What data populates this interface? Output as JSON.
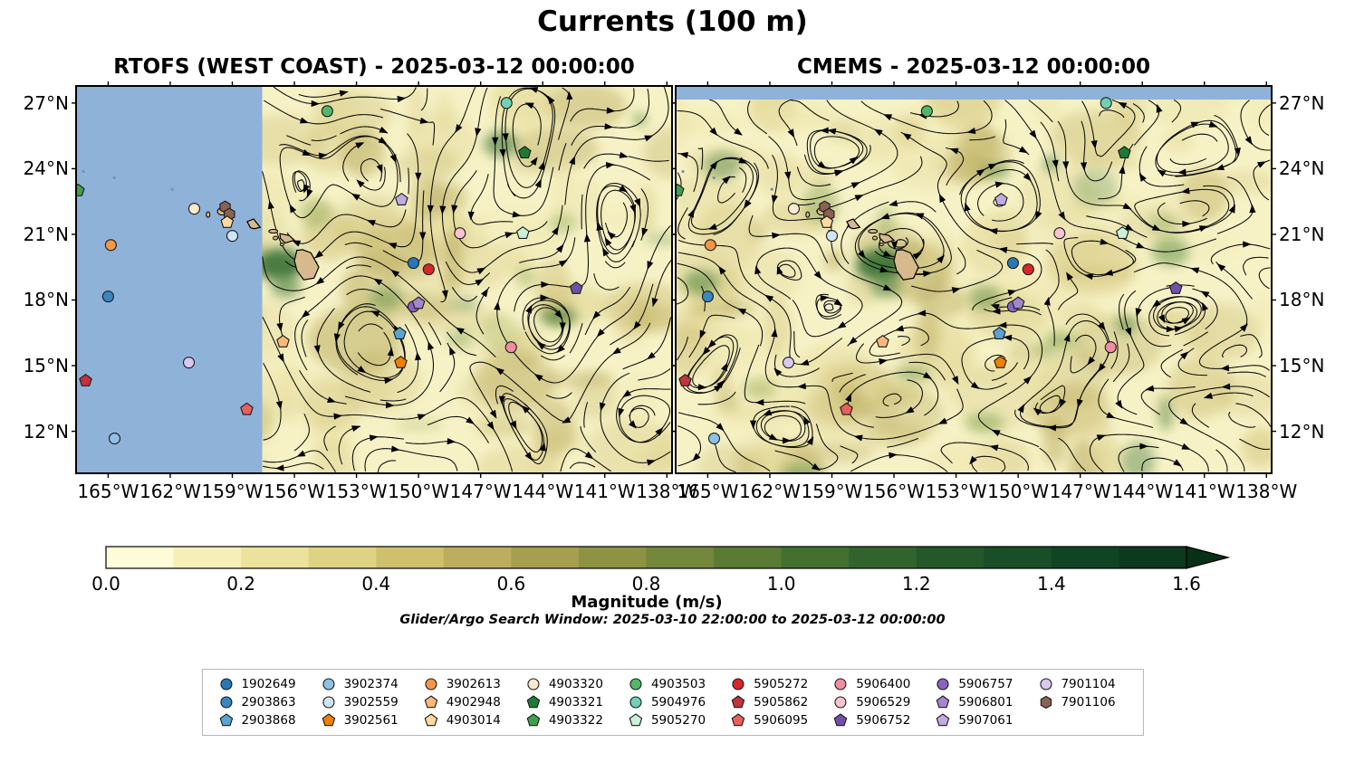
{
  "title": "Currents (100 m)",
  "panels": [
    {
      "model": "RTOFS (WEST COAST)",
      "title": "RTOFS (WEST COAST) - 2025-03-12 00:00:00"
    },
    {
      "model": "CMEMS",
      "title": "CMEMS - 2025-03-12 00:00:00"
    }
  ],
  "subtitle": "Glider/Argo Search Window: 2025-03-10 22:00:00 to 2025-03-12 00:00:00",
  "axes": {
    "lon_ticks": [
      {
        "value": 165,
        "label": "165°W"
      },
      {
        "value": 162,
        "label": "162°W"
      },
      {
        "value": 159,
        "label": "159°W"
      },
      {
        "value": 156,
        "label": "156°W"
      },
      {
        "value": 153,
        "label": "153°W"
      },
      {
        "value": 150,
        "label": "150°W"
      },
      {
        "value": 147,
        "label": "147°W"
      },
      {
        "value": 144,
        "label": "144°W"
      },
      {
        "value": 141,
        "label": "141°W"
      },
      {
        "value": 138,
        "label": "138°W"
      }
    ],
    "lat_ticks": [
      {
        "value": 27,
        "label": "27°N"
      },
      {
        "value": 24,
        "label": "24°N"
      },
      {
        "value": 21,
        "label": "21°N"
      },
      {
        "value": 18,
        "label": "18°N"
      },
      {
        "value": 15,
        "label": "15°N"
      },
      {
        "value": 12,
        "label": "12°N"
      }
    ]
  },
  "colorbar": {
    "label": "Magnitude (m/s)",
    "tick_labels": [
      "0.0",
      "0.2",
      "0.4",
      "0.6",
      "0.8",
      "1.0",
      "1.2",
      "1.4",
      "1.6"
    ],
    "segment_colors": [
      "#fdfbd8",
      "#f6f0b8",
      "#ece29c",
      "#ded283",
      "#cfc06d",
      "#bcae5c",
      "#a69f4e",
      "#8e9243",
      "#74873b",
      "#5a7b34",
      "#43702f",
      "#31642c",
      "#245829",
      "#194e26",
      "#114423",
      "#0b3a1f"
    ],
    "arrow_color": "#073019"
  },
  "map_colors": {
    "base": "#f7f2c6",
    "nodata_ocean": "#8fb2d9",
    "land": "#d6b98c"
  },
  "legend_order": [
    "1902649",
    "2903863",
    "2903868",
    "3902374",
    "3902559",
    "3902561",
    "3902613",
    "4902948",
    "4903014",
    "4903320",
    "4903321",
    "4903322",
    "4903503",
    "5904976",
    "5905270",
    "5905272",
    "5905862",
    "5906095",
    "5906400",
    "5906529",
    "5906752",
    "5906757",
    "5906801",
    "5907061",
    "7901104",
    "7901106"
  ],
  "chart_data": {
    "type": "streamplot-map-comparison",
    "variable": "ocean current magnitude with streamlines",
    "depth": "100 m",
    "valid_time": "2025-03-12 00:00:00",
    "models": [
      "RTOFS (WEST COAST)",
      "CMEMS"
    ],
    "lon_axis_deg_west": [
      165,
      162,
      159,
      156,
      153,
      150,
      147,
      144,
      141,
      138
    ],
    "lat_axis_deg_north": [
      27,
      24,
      21,
      18,
      15,
      12
    ],
    "magnitude_scale_m_per_s": {
      "min": 0.0,
      "max": 1.6,
      "extend": "max"
    },
    "nodata_regions": [
      "RTOFS panel: blue no-data region west of ~157.5°W",
      "CMEMS panel: blue no-data strip north of ~27.2°N"
    ],
    "floats": {
      "styles": {
        "1902649": {
          "shape": "circle",
          "color": "#2878b5"
        },
        "2903863": {
          "shape": "circle",
          "color": "#3a87c0"
        },
        "2903868": {
          "shape": "pentagon",
          "color": "#5ba3d0"
        },
        "3902374": {
          "shape": "circle",
          "color": "#8fc1e6"
        },
        "3902559": {
          "shape": "circle",
          "color": "#cfe4f5"
        },
        "3902561": {
          "shape": "pentagon",
          "color": "#f08000"
        },
        "3902613": {
          "shape": "circle",
          "color": "#f79646"
        },
        "4902948": {
          "shape": "pentagon",
          "color": "#fbb878"
        },
        "4903014": {
          "shape": "pentagon",
          "color": "#fcd9a0"
        },
        "4903320": {
          "shape": "circle",
          "color": "#fde8cd"
        },
        "4903321": {
          "shape": "pentagon",
          "color": "#1e7a35"
        },
        "4903322": {
          "shape": "pentagon",
          "color": "#3fa04b"
        },
        "4903503": {
          "shape": "circle",
          "color": "#52b868"
        },
        "5904976": {
          "shape": "circle",
          "color": "#71d0b5"
        },
        "5905270": {
          "shape": "pentagon",
          "color": "#c9f2d9"
        },
        "5905272": {
          "shape": "circle",
          "color": "#d62828"
        },
        "5905862": {
          "shape": "pentagon",
          "color": "#c2333c"
        },
        "5906095": {
          "shape": "pentagon",
          "color": "#e8605c"
        },
        "5906400": {
          "shape": "circle",
          "color": "#f08da0"
        },
        "5906529": {
          "shape": "circle",
          "color": "#f7c3cf"
        },
        "5906752": {
          "shape": "pentagon",
          "color": "#6f52a8"
        },
        "5906757": {
          "shape": "circle",
          "color": "#8864c0"
        },
        "5906801": {
          "shape": "pentagon",
          "color": "#a386cc"
        },
        "5907061": {
          "shape": "pentagon",
          "color": "#c3abe2"
        },
        "7901104": {
          "shape": "circle",
          "color": "#d9c8ef"
        },
        "7901106": {
          "shape": "hexagon",
          "color": "#8a6253"
        }
      },
      "positions": [
        {
          "id": "4903322",
          "lon": 166.45,
          "lat": 23.0
        },
        {
          "id": "3902613",
          "lon": 164.87,
          "lat": 20.51
        },
        {
          "id": "2903863",
          "lon": 165.0,
          "lat": 18.16
        },
        {
          "id": "5905862",
          "lon": 166.09,
          "lat": 14.31
        },
        {
          "id": "7901104",
          "lon": 161.1,
          "lat": 15.14
        },
        {
          "id": "3902374",
          "lon": 164.69,
          "lat": 11.67
        },
        {
          "id": "4903320",
          "lon": 160.84,
          "lat": 22.17
        },
        {
          "id": "7901106",
          "lon": 159.35,
          "lat": 22.25
        },
        {
          "id": "7901106",
          "lon": 159.14,
          "lat": 21.92
        },
        {
          "id": "3902559",
          "lon": 159.0,
          "lat": 20.93
        },
        {
          "id": "4903014",
          "lon": 159.25,
          "lat": 21.55
        },
        {
          "id": "5906095",
          "lon": 158.3,
          "lat": 13.0
        },
        {
          "id": "4903503",
          "lon": 154.41,
          "lat": 26.63
        },
        {
          "id": "5904976",
          "lon": 145.75,
          "lat": 27.0
        },
        {
          "id": "4903321",
          "lon": 144.87,
          "lat": 24.73
        },
        {
          "id": "5907061",
          "lon": 150.82,
          "lat": 22.58
        },
        {
          "id": "5906529",
          "lon": 148.0,
          "lat": 21.05
        },
        {
          "id": "5905270",
          "lon": 144.96,
          "lat": 21.05
        },
        {
          "id": "1902649",
          "lon": 150.25,
          "lat": 19.69
        },
        {
          "id": "5905272",
          "lon": 149.51,
          "lat": 19.4
        },
        {
          "id": "5906752",
          "lon": 142.38,
          "lat": 18.53
        },
        {
          "id": "5906757",
          "lon": 150.25,
          "lat": 17.7
        },
        {
          "id": "5906801",
          "lon": 150.0,
          "lat": 17.85
        },
        {
          "id": "2903868",
          "lon": 150.91,
          "lat": 16.46
        },
        {
          "id": "4902948",
          "lon": 156.55,
          "lat": 16.09
        },
        {
          "id": "5906400",
          "lon": 145.53,
          "lat": 15.84
        },
        {
          "id": "3902561",
          "lon": 150.86,
          "lat": 15.14
        }
      ]
    }
  }
}
